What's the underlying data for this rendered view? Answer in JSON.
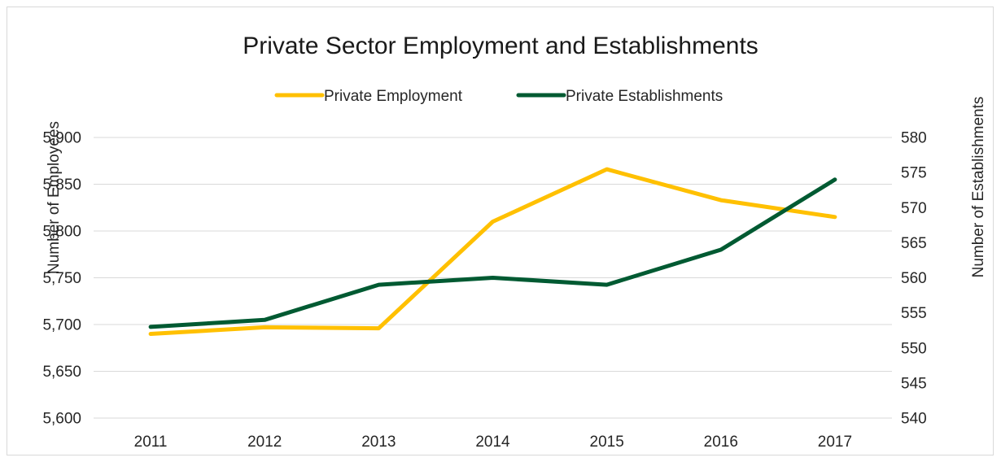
{
  "chart_data": {
    "type": "line",
    "title": "Private Sector Employment and Establishments",
    "categories": [
      "2011",
      "2012",
      "2013",
      "2014",
      "2015",
      "2016",
      "2017"
    ],
    "y_left": {
      "label": "Number of Employees",
      "range": [
        5600,
        5900
      ],
      "ticks": [
        5600,
        5650,
        5700,
        5750,
        5800,
        5850,
        5900
      ],
      "tick_labels": [
        "5,600",
        "5,650",
        "5,700",
        "5,750",
        "5,800",
        "5,850",
        "5,900"
      ]
    },
    "y_right": {
      "label": "Number of Establishments",
      "range": [
        540,
        580
      ],
      "ticks": [
        540,
        545,
        550,
        555,
        560,
        565,
        570,
        575,
        580
      ],
      "tick_labels": [
        "540",
        "545",
        "550",
        "555",
        "560",
        "565",
        "570",
        "575",
        "580"
      ]
    },
    "series": [
      {
        "name": "Private Employment",
        "axis": "left",
        "color": "#ffc000",
        "values": [
          5690,
          5697,
          5696,
          5810,
          5866,
          5833,
          5815
        ]
      },
      {
        "name": "Private Establishments",
        "axis": "right",
        "color": "#005a32",
        "values": [
          553,
          554,
          559,
          560,
          559,
          564,
          574
        ]
      }
    ],
    "grid": true,
    "legend_position": "top"
  }
}
